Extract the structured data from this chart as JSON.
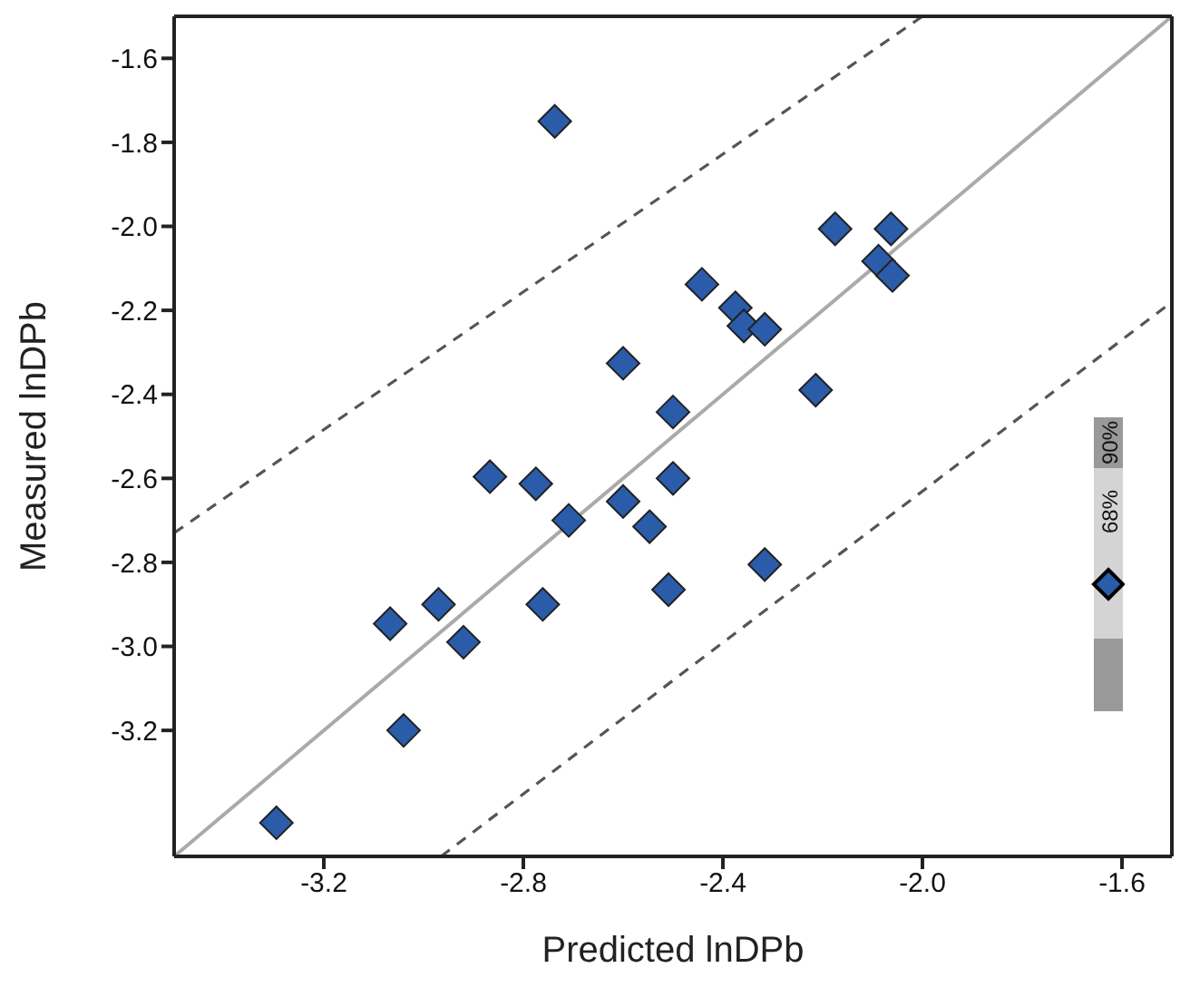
{
  "chart_data": {
    "type": "scatter",
    "xlabel": "Predicted lnDPb",
    "ylabel": "Measured lnDPb",
    "xlim": [
      -3.5,
      -1.5
    ],
    "ylim": [
      -3.5,
      -1.5
    ],
    "xticks": [
      -3.2,
      -2.8,
      -2.4,
      {
        "value": -2.0,
        "label": "-2.0"
      },
      -1.6
    ],
    "yticks": [
      -1.6,
      -1.8,
      {
        "value": -2.0,
        "label": "-2.0"
      },
      -2.2,
      -2.4,
      -2.6,
      -2.8,
      {
        "value": -3.0,
        "label": "-3.0"
      },
      -3.2
    ],
    "annotations": [
      "90%",
      "68%"
    ],
    "series": [
      {
        "color": "#2a5caa",
        "marker": "diamond",
        "x": [
          -3.295,
          -3.04,
          -3.067,
          -2.97,
          -2.92,
          -2.867,
          -2.775,
          -2.761,
          -2.709,
          -2.737,
          -2.6,
          -2.6,
          -2.547,
          -2.5,
          -2.5,
          -2.509,
          -2.442,
          -2.375,
          -2.358,
          -2.316,
          -2.316,
          -2.214,
          -2.175,
          -2.063,
          -2.088,
          -2.06
        ],
        "values": [
          -3.42,
          -3.2,
          -2.946,
          -2.9,
          -2.99,
          -2.596,
          -2.613,
          -2.9,
          -2.7,
          -1.75,
          -2.655,
          -2.326,
          -2.715,
          -2.6,
          -2.442,
          -2.865,
          -2.138,
          -2.194,
          -2.237,
          -2.245,
          -2.805,
          -2.39,
          -2.006,
          -2.006,
          -2.083,
          -2.117
        ]
      },
      {
        "type": "line",
        "marker": "none",
        "color": "#aaaaaa",
        "line_style": "solid",
        "x": [
          -3.5,
          -1.5
        ],
        "values": [
          -3.5,
          -1.5
        ]
      },
      {
        "type": "line",
        "marker": "none",
        "color": "#555555",
        "line_style": "dashed",
        "x": [
          -3.5,
          -2.0
        ],
        "values": [
          -2.73,
          -1.5
        ]
      },
      {
        "type": "line",
        "marker": "none",
        "color": "#555555",
        "line_style": "dashed",
        "x": [
          -2.965,
          -1.5
        ],
        "values": [
          -3.5,
          -2.18
        ]
      }
    ]
  }
}
